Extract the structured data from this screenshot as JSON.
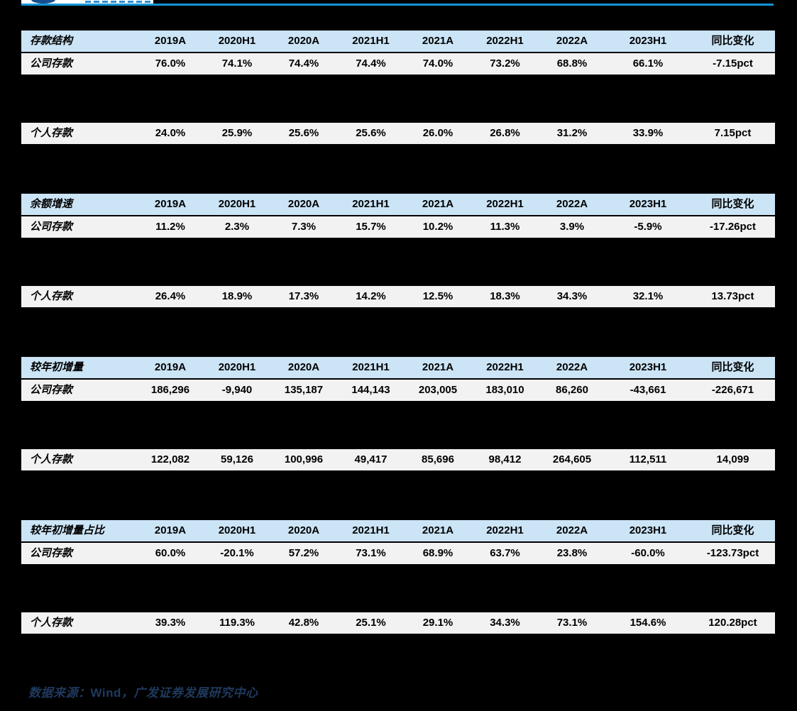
{
  "page": {
    "background_color": "#000000",
    "accent_line_color": "#1396D8",
    "header_row_color": "#CBE4F6",
    "data_row_color": "#F2F2F2",
    "footer_text_color": "#1F3A5F"
  },
  "columns": [
    "2019A",
    "2020H1",
    "2020A",
    "2021H1",
    "2021A",
    "2022H1",
    "2022A",
    "2023H1",
    "同比变化"
  ],
  "sections": [
    {
      "title": "存款结构",
      "rows": [
        {
          "label": "公司存款",
          "values": [
            "76.0%",
            "74.1%",
            "74.4%",
            "74.4%",
            "74.0%",
            "73.2%",
            "68.8%",
            "66.1%",
            "-7.15pct"
          ]
        },
        {
          "label": "个人存款",
          "values": [
            "24.0%",
            "25.9%",
            "25.6%",
            "25.6%",
            "26.0%",
            "26.8%",
            "31.2%",
            "33.9%",
            "7.15pct"
          ]
        }
      ]
    },
    {
      "title": "余额增速",
      "rows": [
        {
          "label": "公司存款",
          "values": [
            "11.2%",
            "2.3%",
            "7.3%",
            "15.7%",
            "10.2%",
            "11.3%",
            "3.9%",
            "-5.9%",
            "-17.26pct"
          ]
        },
        {
          "label": "个人存款",
          "values": [
            "26.4%",
            "18.9%",
            "17.3%",
            "14.2%",
            "12.5%",
            "18.3%",
            "34.3%",
            "32.1%",
            "13.73pct"
          ]
        }
      ]
    },
    {
      "title": "较年初增量",
      "rows": [
        {
          "label": "公司存款",
          "values": [
            "186,296",
            "-9,940",
            "135,187",
            "144,143",
            "203,005",
            "183,010",
            "86,260",
            "-43,661",
            "-226,671"
          ]
        },
        {
          "label": "个人存款",
          "values": [
            "122,082",
            "59,126",
            "100,996",
            "49,417",
            "85,696",
            "98,412",
            "264,605",
            "112,511",
            "14,099"
          ]
        }
      ]
    },
    {
      "title": "较年初增量占比",
      "rows": [
        {
          "label": "公司存款",
          "values": [
            "60.0%",
            "-20.1%",
            "57.2%",
            "73.1%",
            "68.9%",
            "63.7%",
            "23.8%",
            "-60.0%",
            "-123.73pct"
          ]
        },
        {
          "label": "个人存款",
          "values": [
            "39.3%",
            "119.3%",
            "42.8%",
            "25.1%",
            "29.1%",
            "34.3%",
            "73.1%",
            "154.6%",
            "120.28pct"
          ]
        }
      ]
    }
  ],
  "footer": {
    "prefix": "数据来源：",
    "source": "Wind",
    "suffix": "，广发证券发展研究中心"
  }
}
